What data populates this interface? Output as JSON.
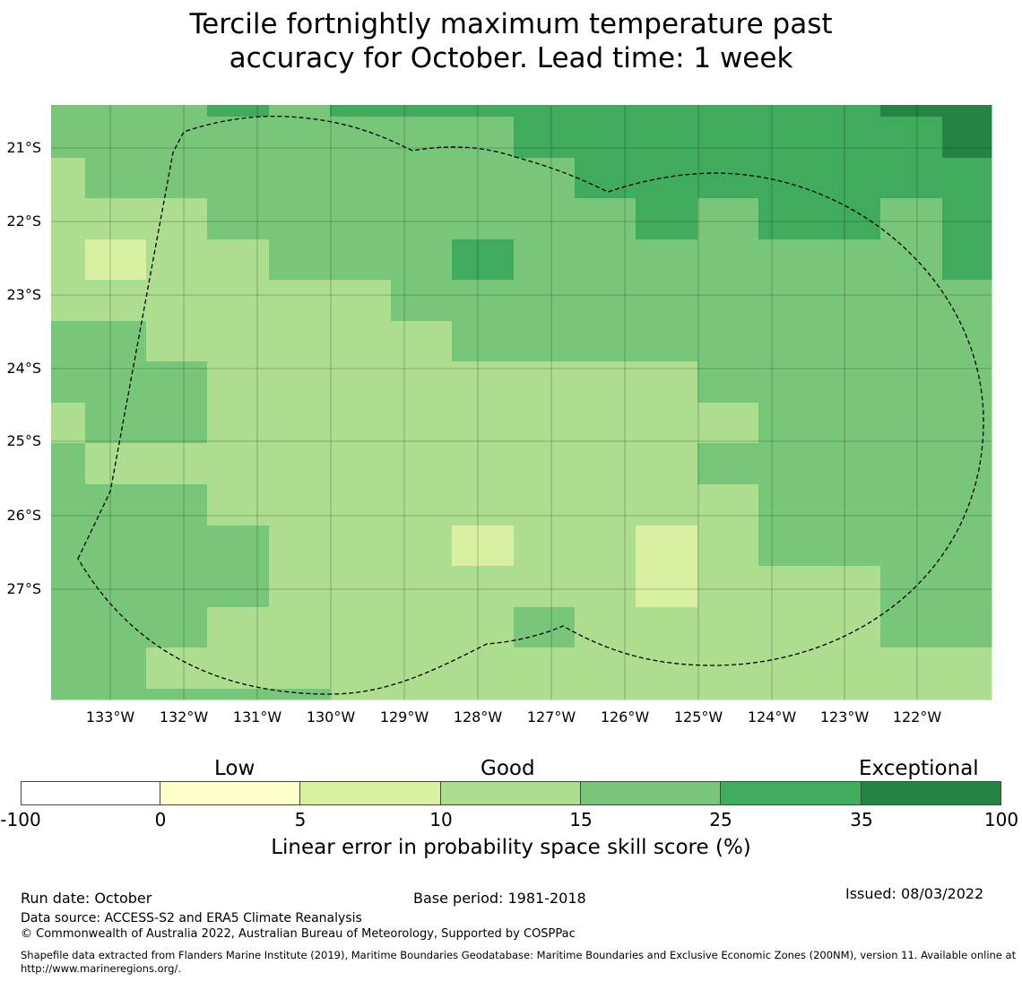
{
  "title_line1": "Tercile fortnightly maximum temperature past",
  "title_line2": "accuracy for October. Lead time: 1 week",
  "chart_data": {
    "type": "heatmap",
    "title": "Tercile fortnightly maximum temperature past accuracy for October. Lead time: 1 week",
    "lat_ticks": [
      "21°S",
      "22°S",
      "23°S",
      "24°S",
      "25°S",
      "26°S",
      "27°S"
    ],
    "lon_ticks": [
      "133°W",
      "132°W",
      "131°W",
      "130°W",
      "129°W",
      "128°W",
      "127°W",
      "126°W",
      "125°W",
      "124°W",
      "123°W",
      "122°W"
    ],
    "bins": [
      "-100 to 0",
      "0 to 5",
      "5 to 10",
      "10 to 15",
      "15 to 25",
      "25 to 35",
      "35 to 100"
    ],
    "bin_colors": [
      "#ffffff",
      "#ffffcc",
      "#d9f0a3",
      "#addd8e",
      "#78c679",
      "#41ab5d",
      "#238443"
    ],
    "grid_note": "rows north to south, columns west to east; values are bin indices",
    "grid": [
      [
        4,
        4,
        4,
        5,
        4,
        5,
        5,
        5,
        5,
        5,
        5,
        5,
        5,
        5,
        6,
        6
      ],
      [
        4,
        4,
        4,
        4,
        4,
        4,
        4,
        4,
        5,
        5,
        5,
        5,
        5,
        5,
        5,
        6
      ],
      [
        3,
        4,
        4,
        4,
        4,
        4,
        4,
        4,
        4,
        5,
        5,
        5,
        5,
        5,
        5,
        5
      ],
      [
        3,
        3,
        3,
        4,
        4,
        4,
        4,
        4,
        4,
        4,
        5,
        4,
        5,
        5,
        4,
        5
      ],
      [
        3,
        2,
        3,
        3,
        4,
        4,
        4,
        5,
        4,
        4,
        4,
        4,
        4,
        4,
        4,
        5
      ],
      [
        3,
        3,
        3,
        3,
        3,
        3,
        4,
        4,
        4,
        4,
        4,
        4,
        4,
        4,
        4,
        4
      ],
      [
        4,
        4,
        3,
        3,
        3,
        3,
        3,
        4,
        4,
        4,
        4,
        4,
        4,
        4,
        4,
        4
      ],
      [
        4,
        4,
        4,
        3,
        3,
        3,
        3,
        3,
        3,
        3,
        3,
        4,
        4,
        4,
        4,
        4
      ],
      [
        3,
        4,
        4,
        3,
        3,
        3,
        3,
        3,
        3,
        3,
        3,
        3,
        4,
        4,
        4,
        4
      ],
      [
        4,
        3,
        3,
        3,
        3,
        3,
        3,
        3,
        3,
        3,
        3,
        4,
        4,
        4,
        4,
        4
      ],
      [
        4,
        4,
        4,
        3,
        3,
        3,
        3,
        3,
        3,
        3,
        3,
        3,
        4,
        4,
        4,
        4
      ],
      [
        4,
        4,
        4,
        4,
        3,
        3,
        3,
        2,
        3,
        3,
        2,
        3,
        4,
        4,
        4,
        4
      ],
      [
        4,
        4,
        4,
        4,
        3,
        3,
        3,
        3,
        3,
        3,
        2,
        3,
        3,
        3,
        4,
        4
      ],
      [
        4,
        4,
        4,
        3,
        3,
        3,
        3,
        3,
        4,
        3,
        3,
        3,
        3,
        3,
        4,
        4
      ],
      [
        4,
        4,
        3,
        3,
        3,
        3,
        3,
        3,
        3,
        3,
        3,
        3,
        3,
        3,
        3,
        3
      ],
      [
        4,
        4,
        4,
        4,
        4,
        3,
        3,
        3,
        3,
        3,
        3,
        3,
        3,
        3,
        3,
        3
      ]
    ],
    "colorbar": {
      "categories": [
        "Low",
        "Good",
        "Exceptional"
      ],
      "ticks": [
        "-100",
        "0",
        "5",
        "10",
        "15",
        "25",
        "35",
        "100"
      ],
      "label": "Linear error in probability space skill score (%)"
    }
  },
  "footer": {
    "run_date": "Run date: October",
    "base_period": "Base period: 1981-2018",
    "issued": "Issued: 08/03/2022",
    "data_source": "Data source: ACCESS-S2 and ERA5 Climate Reanalysis",
    "copyright": "© Commonwealth of Australia 2022, Australian Bureau of Meteorology, Supported by COSPPac",
    "shapefile": "Shapefile data extracted from Flanders Marine Institute (2019), Maritime Boundaries Geodatabase: Maritime Boundaries and Exclusive Economic Zones (200NM), version 11. Available online at http://www.marineregions.org/."
  }
}
